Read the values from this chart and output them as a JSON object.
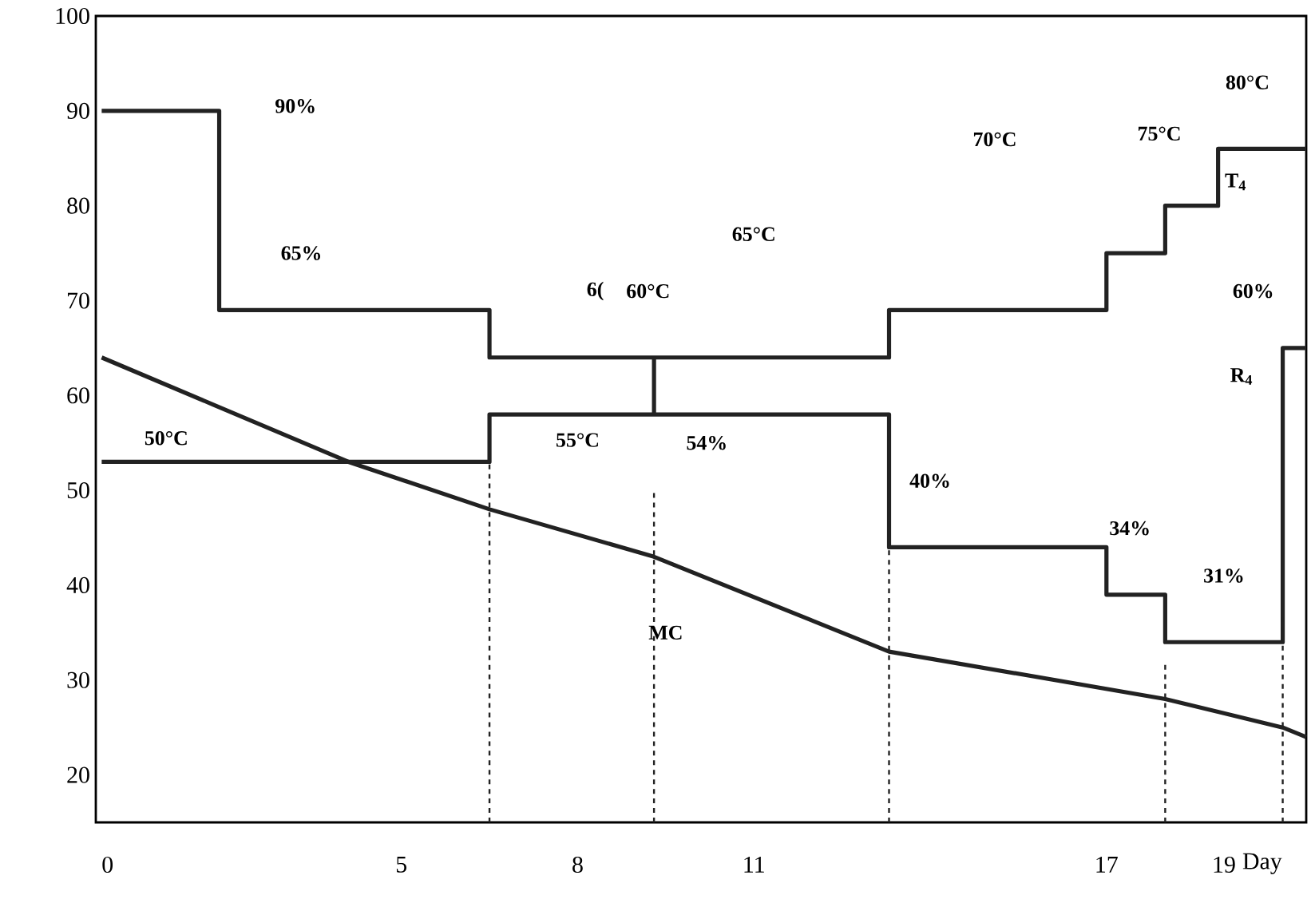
{
  "chart_data": {
    "type": "line",
    "xlabel": "Day",
    "xlim": [
      -0.2,
      20.4
    ],
    "ylim": [
      15,
      100
    ],
    "xticks": [
      0,
      5,
      8,
      11,
      17,
      19
    ],
    "yticks": [
      20,
      30,
      40,
      50,
      60,
      70,
      80,
      90,
      100
    ],
    "grid": false,
    "legend": false,
    "series": [
      {
        "color": "#222222",
        "line_style": "solid",
        "x": [
          -0.1,
          1.9,
          1.9,
          6.5,
          6.5,
          13.3,
          13.3,
          17,
          17,
          18,
          18,
          18.9,
          18.9,
          20.4
        ],
        "values": [
          90,
          90,
          69,
          69,
          64,
          64,
          69,
          69,
          75,
          75,
          80,
          80,
          86,
          86
        ]
      },
      {
        "color": "#222222",
        "line_style": "solid",
        "x": [
          -0.1,
          6.5,
          6.5,
          13.3,
          13.3,
          17,
          17,
          18,
          18,
          20,
          20,
          20.4
        ],
        "values": [
          53,
          53,
          58,
          58,
          44,
          44,
          39,
          39,
          34,
          34,
          65,
          65
        ]
      },
      {
        "color": "#222222",
        "line_style": "solid",
        "x": [
          9.3,
          9.3
        ],
        "values": [
          64,
          58
        ]
      },
      {
        "color": "#222222",
        "line_style": "solid",
        "x": [
          -0.1,
          4.1,
          6.5,
          9.3,
          13.3,
          18,
          20,
          20.4
        ],
        "values": [
          64,
          53,
          48,
          43,
          33,
          28,
          25,
          24
        ]
      },
      {
        "color": "#222222",
        "line_style": "dashed",
        "x": [
          6.5,
          6.5
        ],
        "values": [
          15,
          53
        ]
      },
      {
        "color": "#222222",
        "line_style": "dashed",
        "x": [
          9.3,
          9.3
        ],
        "values": [
          15,
          50
        ]
      },
      {
        "color": "#222222",
        "line_style": "dashed",
        "x": [
          13.3,
          13.3
        ],
        "values": [
          15,
          58
        ]
      },
      {
        "color": "#222222",
        "line_style": "dashed",
        "x": [
          18,
          18
        ],
        "values": [
          15,
          32
        ]
      },
      {
        "color": "#222222",
        "line_style": "dashed",
        "x": [
          20,
          20
        ],
        "values": [
          15,
          37
        ]
      }
    ],
    "annotations": [
      "90%",
      "65%",
      "6(",
      "60°C",
      "65°C",
      "70°C",
      "75°C",
      "80°C",
      "T$_{4}$",
      "60%",
      "R$_{4}$",
      "50°C",
      "55°C",
      "54%",
      "40%",
      "34%",
      "31%",
      "MC"
    ]
  }
}
